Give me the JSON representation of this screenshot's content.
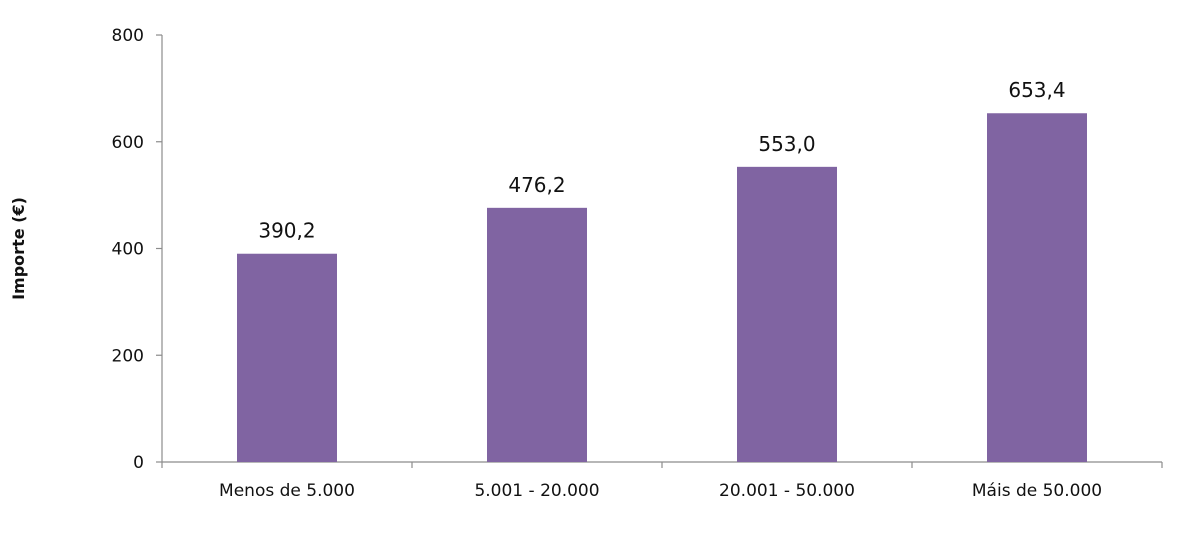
{
  "chart_data": {
    "type": "bar",
    "categories": [
      "Menos de 5.000",
      "5.001 - 20.000",
      "20.001 - 50.000",
      "Máis de 50.000"
    ],
    "values": [
      390.2,
      476.2,
      553.0,
      653.4
    ],
    "data_labels": [
      "390,2",
      "476,2",
      "553,0",
      "653,4"
    ],
    "ylabel": "Importe (€)",
    "xlabel": "",
    "ylim": [
      0,
      800
    ],
    "yticks": [
      0,
      200,
      400,
      600,
      800
    ],
    "ytick_labels": [
      "0",
      "200",
      "400",
      "600",
      "800"
    ],
    "grid": false,
    "legend": "none",
    "bar_color": "#8064a2"
  }
}
